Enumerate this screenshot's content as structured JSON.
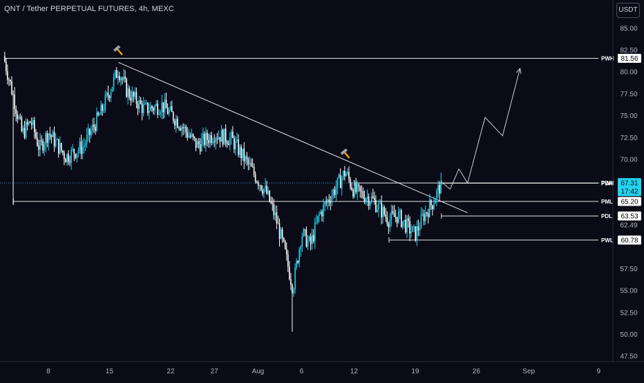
{
  "header": {
    "title": "QNT / Tether PERPETUAL FUTURES, 4h, MEXC",
    "currency_button": "USDT"
  },
  "colors": {
    "background": "#0b0b17",
    "bullish_candle": "#22d3ee",
    "bearish_candle": "#ffffff",
    "line": "#e6e6e6",
    "axis_text": "#b2b5be",
    "last_price_label_bg": "#22d3ee",
    "last_price_line": "#22a8c8",
    "level_label_bg": "#ffffff",
    "level_label_text": "#000000",
    "hammer_handle": "#f59e0b",
    "hammer_head": "#9ca3af"
  },
  "chart_data": {
    "type": "candlestick",
    "title": "QNT / Tether PERPETUAL FUTURES, 4h, MEXC",
    "xlabel": "",
    "ylabel": "",
    "x_tick_labels": [
      "8",
      "15",
      "22",
      "27",
      "Aug",
      "6",
      "12",
      "19",
      "26",
      "Sep",
      "9"
    ],
    "y_tick_labels": [
      "85.00",
      "82.50",
      "80.00",
      "77.50",
      "75.00",
      "72.50",
      "70.00",
      "65.00",
      "62.49",
      "57.50",
      "55.00",
      "52.50",
      "50.00",
      "47.50"
    ],
    "ylim": [
      46.5,
      87.5
    ],
    "grid": false,
    "last_price": {
      "value": 67.31,
      "price_label": "67.31",
      "countdown": "17:42"
    },
    "levels": [
      {
        "name": "PWH",
        "value": 81.56,
        "value_label": "81.56",
        "from_date": "Jul 3"
      },
      {
        "name": "PWH",
        "value": 67.31,
        "value_label": "",
        "from_date": "Aug 12"
      },
      {
        "name": "PDH",
        "value": 67.28,
        "value_label": "67.28",
        "from_date": "Aug 22"
      },
      {
        "name": "PML",
        "value": 65.2,
        "value_label": "65.20",
        "from_date": "Jul 4"
      },
      {
        "name": "PDL",
        "value": 63.53,
        "value_label": "63.53",
        "from_date": "Aug 22"
      },
      {
        "name": "PWL",
        "value": 60.78,
        "value_label": "60.78",
        "from_date": "Aug 16"
      }
    ],
    "trendline": {
      "start": {
        "date": "Jul 16",
        "value": 81.1
      },
      "end": {
        "date": "Aug 25",
        "value": 63.9
      }
    },
    "projection_path": [
      {
        "date": "Aug 22",
        "value": 67.4
      },
      {
        "date": "Aug 23",
        "value": 66.6
      },
      {
        "date": "Aug 24",
        "value": 68.9
      },
      {
        "date": "Aug 25",
        "value": 67.3
      },
      {
        "date": "Aug 27",
        "value": 74.8
      },
      {
        "date": "Aug 29",
        "value": 72.7
      },
      {
        "date": "Aug 31",
        "value": 80.4
      }
    ],
    "hammer_markers": [
      {
        "date": "Jul 16",
        "value": 82.5
      },
      {
        "date": "Aug 11",
        "value": 70.7
      }
    ],
    "price_path_anchors": [
      {
        "date": "Jul 3",
        "value": 81.2
      },
      {
        "date": "Jul 4",
        "value": 77.2
      },
      {
        "date": "Jul 5",
        "value": 72.9
      },
      {
        "date": "Jul 6",
        "value": 74.4
      },
      {
        "date": "Jul 7",
        "value": 71.2
      },
      {
        "date": "Jul 8",
        "value": 73.1
      },
      {
        "date": "Jul 10",
        "value": 70.3
      },
      {
        "date": "Jul 12",
        "value": 71.5
      },
      {
        "date": "Jul 14",
        "value": 75.3
      },
      {
        "date": "Jul 16",
        "value": 80.3
      },
      {
        "date": "Jul 17",
        "value": 77.8
      },
      {
        "date": "Jul 19",
        "value": 75.7
      },
      {
        "date": "Jul 21",
        "value": 76.2
      },
      {
        "date": "Jul 23",
        "value": 74.2
      },
      {
        "date": "Jul 25",
        "value": 71.6
      },
      {
        "date": "Jul 27",
        "value": 72.9
      },
      {
        "date": "Jul 29",
        "value": 72.3
      },
      {
        "date": "Jul 31",
        "value": 69.2
      },
      {
        "date": "Aug 2",
        "value": 66.1
      },
      {
        "date": "Aug 3",
        "value": 63.4
      },
      {
        "date": "Aug 4",
        "value": 59.7
      },
      {
        "date": "Aug 5",
        "value": 55.3
      },
      {
        "date": "Aug 6",
        "value": 61.6
      },
      {
        "date": "Aug 7",
        "value": 60.2
      },
      {
        "date": "Aug 8",
        "value": 63.6
      },
      {
        "date": "Aug 9",
        "value": 65.3
      },
      {
        "date": "Aug 10",
        "value": 66.9
      },
      {
        "date": "Aug 11",
        "value": 68.6
      },
      {
        "date": "Aug 12",
        "value": 66.4
      },
      {
        "date": "Aug 14",
        "value": 65.5
      },
      {
        "date": "Aug 16",
        "value": 63.1
      },
      {
        "date": "Aug 17",
        "value": 63.6
      },
      {
        "date": "Aug 18",
        "value": 62.4
      },
      {
        "date": "Aug 19",
        "value": 61.4
      },
      {
        "date": "Aug 20",
        "value": 63.6
      },
      {
        "date": "Aug 21",
        "value": 65.1
      },
      {
        "date": "Aug 22",
        "value": 67.3
      }
    ],
    "extreme_wicks": [
      {
        "date": "Jul 4",
        "value": 64.8
      },
      {
        "date": "Aug 5",
        "value": 50.3
      }
    ]
  }
}
